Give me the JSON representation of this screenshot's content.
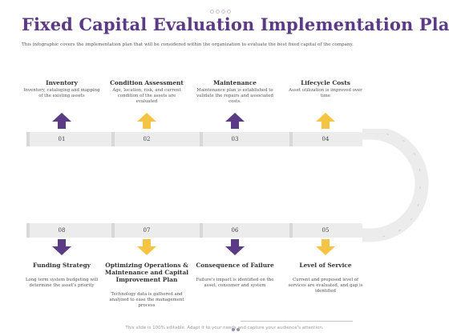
{
  "title": "Fixed Capital Evaluation Implementation Plan",
  "subtitle": "This infographic covers the implementation plan that will be considered within the organization to evaluate the best fixed capital of the company.",
  "colors": {
    "purple": "#5b3a86",
    "yellow": "#f5c443",
    "bar": "#ececec"
  },
  "top_steps": [
    {
      "number": "01",
      "heading": "Inventory",
      "description": "Inventory, cataloging and mapping of the existing assets",
      "arrow": "arrow-up-icon",
      "color": "purple"
    },
    {
      "number": "02",
      "heading": "Condition Assessment",
      "description": "Age, location, risk, and current condition of the assets are evaluated",
      "arrow": "arrow-up-icon",
      "color": "yellow"
    },
    {
      "number": "03",
      "heading": "Maintenance",
      "description": "Maintenance plan is established to validate the repairs and associated costs.",
      "arrow": "arrow-up-icon",
      "color": "purple"
    },
    {
      "number": "04",
      "heading": "Lifecycle Costs",
      "description": "Asset utilization is improved over time",
      "arrow": "arrow-up-icon",
      "color": "yellow"
    }
  ],
  "bottom_steps": [
    {
      "number": "08",
      "heading": "Funding Strategy",
      "description": "Long term system budgeting will determine the asset's priority",
      "arrow": "arrow-down-icon",
      "color": "purple"
    },
    {
      "number": "07",
      "heading": "Optimizing Operations & Maintenance and Capital Improvement Plan",
      "description": "Technology data is gathered and analyzed to ease the management process",
      "arrow": "arrow-down-icon",
      "color": "yellow"
    },
    {
      "number": "06",
      "heading": "Consequence of Failure",
      "description": "Failure's impact is identified on the asset, consumer and system",
      "arrow": "arrow-down-icon",
      "color": "purple"
    },
    {
      "number": "05",
      "heading": "Level of Service",
      "description": "Current and proposed level of services are evaluated, and gap is identified",
      "arrow": "arrow-down-icon",
      "color": "yellow"
    }
  ],
  "footer": "This slide is 100% editable. Adapt it to your needs and capture your audience's attention."
}
